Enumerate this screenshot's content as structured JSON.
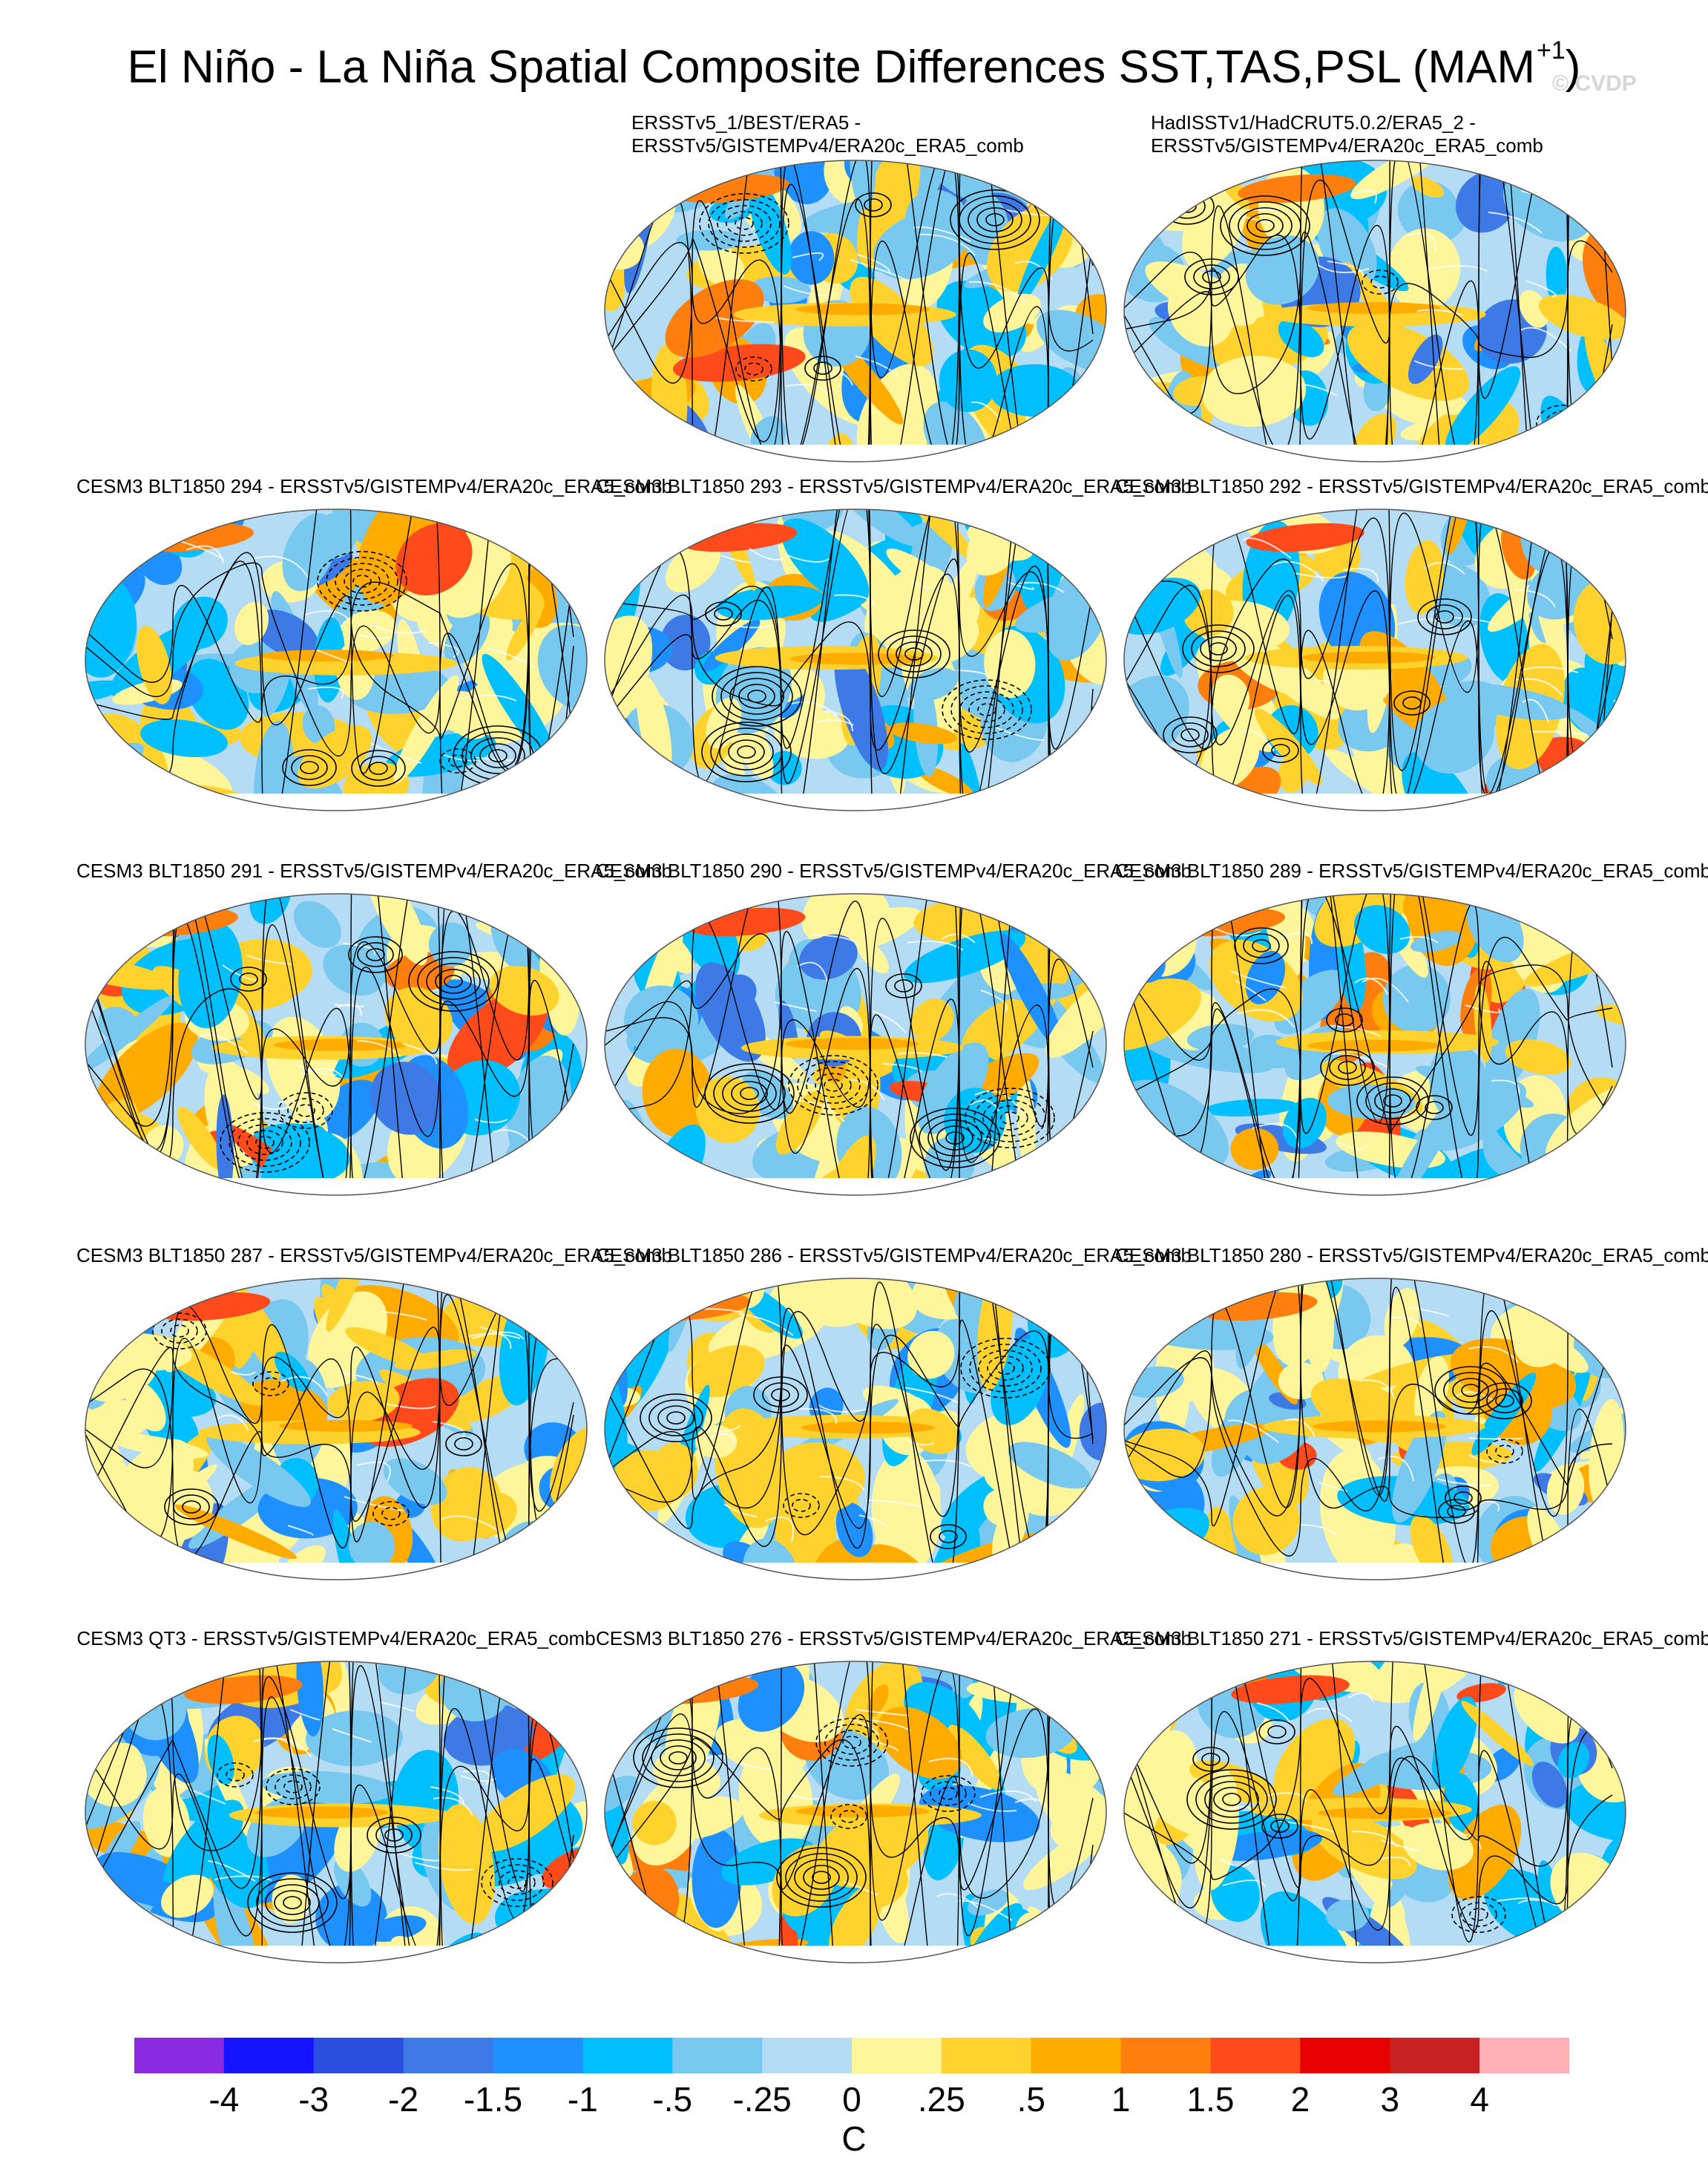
{
  "title": {
    "main": "El Niño - La Niña Spatial Composite Differences SST,TAS,PSL (MAM",
    "sup": "+1",
    "close": ")"
  },
  "watermark": "© CVDP",
  "panels": [
    {
      "line1": "ERSSTv5_1/BEST/ERA5 -",
      "line2": "ERSSTv5/GISTEMPv4/ERA20c_ERA5_comb",
      "seed": 3
    },
    {
      "line1": "HadISSTv1/HadCRUT5.0.2/ERA5_2 -",
      "line2": "ERSSTv5/GISTEMPv4/ERA20c_ERA5_comb",
      "seed": 7
    },
    {
      "line1": "CESM3 BLT1850 294 - ERSSTv5/GISTEMPv4/ERA20c_ERA5_comb",
      "seed": 11
    },
    {
      "line1": "CESM3 BLT1850 293 - ERSSTv5/GISTEMPv4/ERA20c_ERA5_comb",
      "seed": 13
    },
    {
      "line1": "CESM3 BLT1850 292 - ERSSTv5/GISTEMPv4/ERA20c_ERA5_comb",
      "seed": 17
    },
    {
      "line1": "CESM3 BLT1850 291 - ERSSTv5/GISTEMPv4/ERA20c_ERA5_comb",
      "seed": 19
    },
    {
      "line1": "CESM3 BLT1850 290 - ERSSTv5/GISTEMPv4/ERA20c_ERA5_comb",
      "seed": 23
    },
    {
      "line1": "CESM3 BLT1850 289 - ERSSTv5/GISTEMPv4/ERA20c_ERA5_comb",
      "seed": 29
    },
    {
      "line1": "CESM3 BLT1850 287 - ERSSTv5/GISTEMPv4/ERA20c_ERA5_comb",
      "seed": 31
    },
    {
      "line1": "CESM3 BLT1850 286 - ERSSTv5/GISTEMPv4/ERA20c_ERA5_comb",
      "seed": 37
    },
    {
      "line1": "CESM3 BLT1850 280 - ERSSTv5/GISTEMPv4/ERA20c_ERA5_comb",
      "seed": 41
    },
    {
      "line1": "CESM3 QT3 - ERSSTv5/GISTEMPv4/ERA20c_ERA5_comb",
      "seed": 43
    },
    {
      "line1": "CESM3 BLT1850 276 - ERSSTv5/GISTEMPv4/ERA20c_ERA5_comb",
      "seed": 47
    },
    {
      "line1": "CESM3 BLT1850 271 - ERSSTv5/GISTEMPv4/ERA20c_ERA5_comb",
      "seed": 53
    }
  ],
  "colorbar": {
    "colors": [
      "#8a2be2",
      "#1414ff",
      "#2a4ee0",
      "#3d7ae6",
      "#1e90ff",
      "#00bfff",
      "#78c8f0",
      "#b4dcf5",
      "#fff59a",
      "#ffd22e",
      "#ffab00",
      "#ff7f0e",
      "#ff4a1c",
      "#e60000",
      "#c82222",
      "#ffb0b4"
    ],
    "ticks": [
      "-4",
      "-3",
      "-2",
      "-1.5",
      "-1",
      "-.5",
      "-.25",
      "0",
      ".25",
      ".5",
      "1",
      "1.5",
      "2",
      "3",
      "4"
    ],
    "units": "C"
  }
}
